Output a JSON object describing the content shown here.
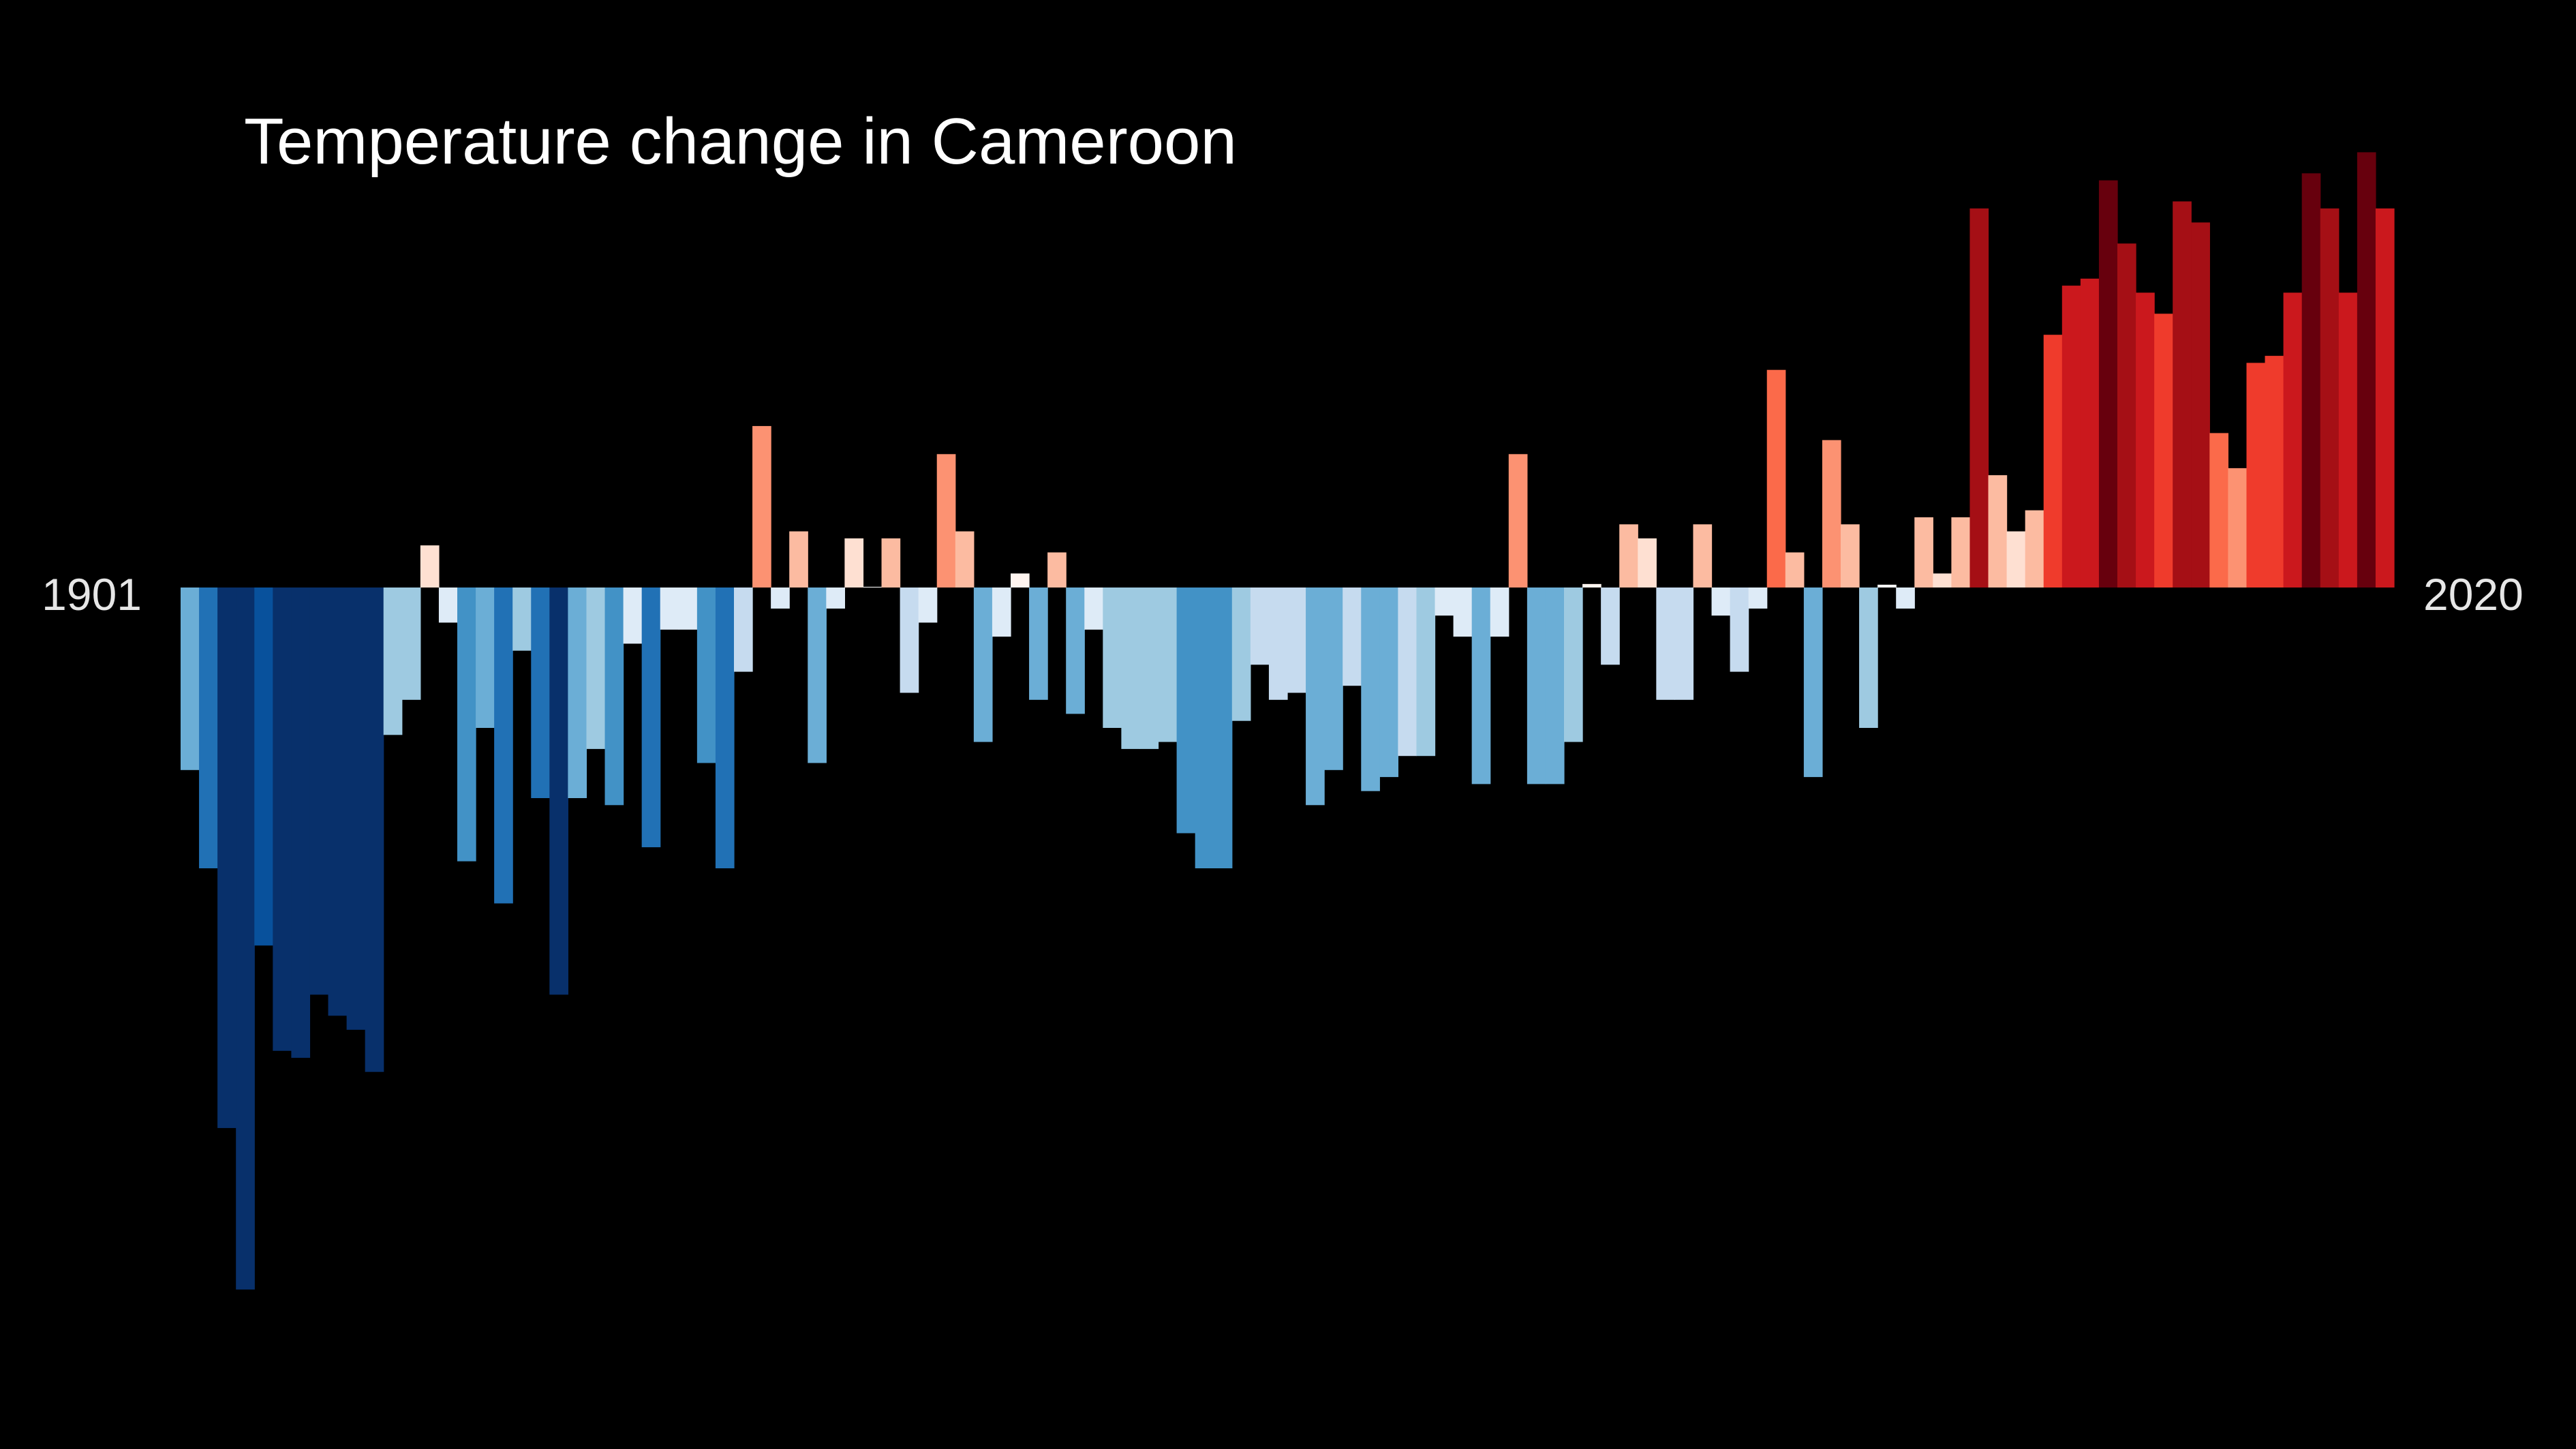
{
  "chart_data": {
    "type": "bar",
    "title": "Temperature change in Cameroon",
    "start_label": "1901",
    "end_label": "2020",
    "x_start": 1901,
    "x_end": 2020,
    "ylim": [
      -1.0,
      0.65
    ],
    "values": [
      -0.26,
      -0.4,
      -0.77,
      -1.0,
      -0.51,
      -0.66,
      -0.67,
      -0.58,
      -0.61,
      -0.63,
      -0.69,
      -0.21,
      -0.16,
      0.06,
      -0.05,
      -0.39,
      -0.2,
      -0.45,
      -0.09,
      -0.3,
      -0.58,
      -0.3,
      -0.23,
      -0.31,
      -0.08,
      -0.37,
      -0.06,
      -0.06,
      -0.25,
      -0.4,
      -0.12,
      0.23,
      -0.03,
      0.08,
      -0.25,
      -0.03,
      0.07,
      0.001,
      0.07,
      -0.15,
      -0.05,
      0.19,
      0.08,
      -0.22,
      -0.07,
      0.02,
      -0.16,
      0.05,
      -0.18,
      -0.06,
      -0.2,
      -0.23,
      -0.23,
      -0.22,
      -0.35,
      -0.4,
      -0.4,
      -0.19,
      -0.11,
      -0.16,
      -0.15,
      -0.31,
      -0.26,
      -0.14,
      -0.29,
      -0.27,
      -0.24,
      -0.24,
      -0.04,
      -0.07,
      -0.28,
      -0.07,
      0.19,
      -0.28,
      -0.28,
      -0.22,
      0.005,
      -0.11,
      0.09,
      0.07,
      -0.16,
      -0.16,
      0.09,
      -0.04,
      -0.12,
      -0.03,
      0.31,
      0.05,
      -0.27,
      0.21,
      0.09,
      -0.2,
      0.004,
      -0.03,
      0.1,
      0.02,
      0.1,
      0.54,
      0.16,
      0.08,
      0.11,
      0.36,
      0.43,
      0.44,
      0.58,
      0.49,
      0.42,
      0.39,
      0.55,
      0.52,
      0.22,
      0.17,
      0.32,
      0.33,
      0.42,
      0.59,
      0.54,
      0.42,
      0.62,
      0.54
    ],
    "colors": [
      "#6baed6",
      "#2171b5",
      "#08306b",
      "#08306b",
      "#08519c",
      "#08306b",
      "#08306b",
      "#08306b",
      "#08306b",
      "#08306b",
      "#08306b",
      "#9ecae1",
      "#9ecae1",
      "#fee0d2",
      "#deebf7",
      "#4292c6",
      "#6baed6",
      "#2171b5",
      "#9ecae1",
      "#2171b5",
      "#08306b",
      "#6baed6",
      "#9ecae1",
      "#4292c6",
      "#deebf7",
      "#2171b5",
      "#deebf7",
      "#deebf7",
      "#4292c6",
      "#2171b5",
      "#c6dbef",
      "#fc9272",
      "#deebf7",
      "#fcbba1",
      "#6baed6",
      "#deebf7",
      "#fee0d2",
      "#ffffff",
      "#fcbba1",
      "#c6dbef",
      "#deebf7",
      "#fc9272",
      "#fcbba1",
      "#6baed6",
      "#deebf7",
      "#fff5f0",
      "#6baed6",
      "#fcbba1",
      "#6baed6",
      "#deebf7",
      "#9ecae1",
      "#9ecae1",
      "#9ecae1",
      "#9ecae1",
      "#4292c6",
      "#4292c6",
      "#4292c6",
      "#9ecae1",
      "#c6dbef",
      "#c6dbef",
      "#c6dbef",
      "#6baed6",
      "#6baed6",
      "#c6dbef",
      "#6baed6",
      "#6baed6",
      "#c6dbef",
      "#9ecae1",
      "#deebf7",
      "#deebf7",
      "#6baed6",
      "#deebf7",
      "#fc9272",
      "#6baed6",
      "#6baed6",
      "#9ecae1",
      "#fff5f0",
      "#c6dbef",
      "#fcbba1",
      "#fee0d2",
      "#c6dbef",
      "#c6dbef",
      "#fcbba1",
      "#deebf7",
      "#c6dbef",
      "#deebf7",
      "#fb6a4a",
      "#fcbba1",
      "#6baed6",
      "#fc9272",
      "#fcbba1",
      "#9ecae1",
      "#ffffff",
      "#deebf7",
      "#fcbba1",
      "#fee0d2",
      "#fcbba1",
      "#a50f15",
      "#fcbba1",
      "#fee0d2",
      "#fcbba1",
      "#ef3b2c",
      "#cb181d",
      "#cb181d",
      "#67000d",
      "#a50f15",
      "#cb181d",
      "#ef3b2c",
      "#a50f15",
      "#a50f15",
      "#fb6a4a",
      "#fc9272",
      "#ef3b2c",
      "#ef3b2c",
      "#cb181d",
      "#67000d",
      "#a50f15",
      "#cb181d",
      "#67000d",
      "#cb181d"
    ]
  }
}
